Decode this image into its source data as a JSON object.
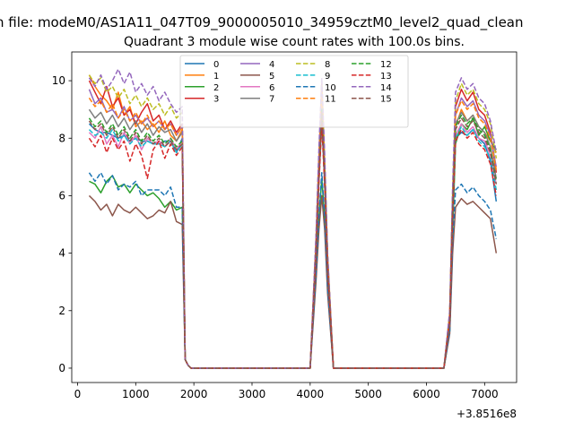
{
  "chart_data": {
    "type": "line",
    "suptitle": "n file: modeM0/AS1A11_047T09_9000005010_34959cztM0_level2_quad_clean",
    "title": "Quadrant 3 module wise count rates with 100.0s bins.",
    "xlabel": "",
    "ylabel": "",
    "x_offset_label": "+3.8516e8",
    "xlim": [
      -100,
      7550
    ],
    "ylim": [
      -0.5,
      11.0
    ],
    "xticks": [
      0,
      1000,
      2000,
      3000,
      4000,
      5000,
      6000,
      7000
    ],
    "yticks": [
      0,
      2,
      4,
      6,
      8,
      10
    ],
    "grid": false,
    "legend": {
      "placement": "top-center",
      "columns": 4
    },
    "x": [
      200,
      300,
      400,
      500,
      600,
      700,
      800,
      900,
      1000,
      1100,
      1200,
      1300,
      1400,
      1500,
      1600,
      1700,
      1800,
      1850,
      1900,
      1950,
      2000,
      2100,
      2500,
      3000,
      3500,
      3900,
      4000,
      4100,
      4150,
      4200,
      4250,
      4300,
      4400,
      4500,
      5000,
      5500,
      6000,
      6300,
      6400,
      6450,
      6500,
      6600,
      6700,
      6800,
      6900,
      7000,
      7100,
      7200
    ],
    "series": [
      {
        "name": "0",
        "color": "#1f77b4",
        "dash": "solid",
        "values": [
          8.5,
          8.3,
          8.2,
          8.2,
          8.1,
          8.0,
          8.1,
          7.9,
          8.0,
          7.9,
          7.9,
          7.8,
          7.8,
          7.9,
          7.9,
          7.5,
          8.0,
          0.3,
          0.1,
          0.0,
          0.0,
          0.0,
          0.0,
          0.0,
          0.0,
          0.0,
          0.0,
          4.0,
          6.6,
          8.8,
          6.5,
          3.5,
          0.0,
          0.0,
          0.0,
          0.0,
          0.0,
          0.0,
          1.7,
          5.5,
          8.0,
          8.2,
          8.1,
          8.3,
          8.0,
          7.8,
          7.2,
          5.8
        ]
      },
      {
        "name": "1",
        "color": "#ff7f0e",
        "dash": "solid",
        "values": [
          10.2,
          9.8,
          9.5,
          9.3,
          9.0,
          9.6,
          8.8,
          9.1,
          8.4,
          8.6,
          8.3,
          8.5,
          8.2,
          8.6,
          8.1,
          7.9,
          8.3,
          0.3,
          0.1,
          0.0,
          0.0,
          0.0,
          0.0,
          0.0,
          0.0,
          0.0,
          0.0,
          4.3,
          7.2,
          9.8,
          7.0,
          3.8,
          0.0,
          0.0,
          0.0,
          0.0,
          0.0,
          0.0,
          1.8,
          5.8,
          8.4,
          9.0,
          8.6,
          8.8,
          8.4,
          8.2,
          7.9,
          7.5
        ]
      },
      {
        "name": "2",
        "color": "#2ca02c",
        "dash": "solid",
        "values": [
          6.5,
          6.4,
          6.1,
          6.5,
          6.7,
          6.3,
          6.4,
          6.1,
          6.4,
          6.2,
          6.0,
          6.1,
          5.9,
          5.6,
          5.8,
          5.5,
          5.6,
          0.3,
          0.1,
          0.0,
          0.0,
          0.0,
          0.0,
          0.0,
          0.0,
          0.0,
          0.0,
          3.4,
          5.2,
          6.6,
          5.2,
          2.8,
          0.0,
          0.0,
          0.0,
          0.0,
          0.0,
          0.0,
          1.3,
          4.7,
          7.8,
          8.5,
          8.3,
          8.7,
          8.1,
          8.4,
          7.9,
          7.6
        ]
      },
      {
        "name": "3",
        "color": "#d62728",
        "dash": "solid",
        "values": [
          10.0,
          9.6,
          9.2,
          9.8,
          9.1,
          9.4,
          8.8,
          9.0,
          8.5,
          8.9,
          9.2,
          8.6,
          8.8,
          8.3,
          8.6,
          8.2,
          8.5,
          0.3,
          0.1,
          0.0,
          0.0,
          0.0,
          0.0,
          0.0,
          0.0,
          0.0,
          0.0,
          4.4,
          7.3,
          9.9,
          7.1,
          3.9,
          0.0,
          0.0,
          0.0,
          0.0,
          0.0,
          0.0,
          1.9,
          6.0,
          9.1,
          9.7,
          9.3,
          9.6,
          9.0,
          8.8,
          8.2,
          6.8
        ]
      },
      {
        "name": "4",
        "color": "#9467bd",
        "dash": "solid",
        "values": [
          9.7,
          9.2,
          9.4,
          8.9,
          9.0,
          8.7,
          9.1,
          8.6,
          8.8,
          8.5,
          8.7,
          8.4,
          8.6,
          8.3,
          8.5,
          8.1,
          8.4,
          0.3,
          0.1,
          0.0,
          0.0,
          0.0,
          0.0,
          0.0,
          0.0,
          0.0,
          0.0,
          4.3,
          7.1,
          9.7,
          7.0,
          3.8,
          0.0,
          0.0,
          0.0,
          0.0,
          0.0,
          0.0,
          1.8,
          5.9,
          8.8,
          9.4,
          9.1,
          9.3,
          8.8,
          8.6,
          8.1,
          7.0
        ]
      },
      {
        "name": "5",
        "color": "#8c564b",
        "dash": "solid",
        "values": [
          6.0,
          5.8,
          5.5,
          5.7,
          5.3,
          5.7,
          5.5,
          5.4,
          5.6,
          5.4,
          5.2,
          5.3,
          5.5,
          5.4,
          5.8,
          5.1,
          5.0,
          0.3,
          0.1,
          0.0,
          0.0,
          0.0,
          0.0,
          0.0,
          0.0,
          0.0,
          0.0,
          3.0,
          4.8,
          6.0,
          4.8,
          2.6,
          0.0,
          0.0,
          0.0,
          0.0,
          0.0,
          0.0,
          1.2,
          4.0,
          5.6,
          5.9,
          5.7,
          5.8,
          5.6,
          5.4,
          5.2,
          4.0
        ]
      },
      {
        "name": "6",
        "color": "#e377c2",
        "dash": "solid",
        "values": [
          8.2,
          8.0,
          8.4,
          7.8,
          8.1,
          7.7,
          8.2,
          7.8,
          8.1,
          7.6,
          8.0,
          7.8,
          7.9,
          7.7,
          8.0,
          7.6,
          7.9,
          0.3,
          0.1,
          0.0,
          0.0,
          0.0,
          0.0,
          0.0,
          0.0,
          0.0,
          0.0,
          3.9,
          6.5,
          8.7,
          6.4,
          3.5,
          0.0,
          0.0,
          0.0,
          0.0,
          0.0,
          0.0,
          1.6,
          5.4,
          8.1,
          8.5,
          8.2,
          8.4,
          8.0,
          7.9,
          7.4,
          6.4
        ]
      },
      {
        "name": "7",
        "color": "#7f7f7f",
        "dash": "solid",
        "values": [
          9.0,
          8.7,
          8.9,
          8.5,
          8.8,
          8.4,
          8.7,
          8.3,
          8.6,
          8.2,
          8.5,
          8.1,
          8.4,
          8.2,
          8.3,
          7.9,
          8.2,
          0.3,
          0.1,
          0.0,
          0.0,
          0.0,
          0.0,
          0.0,
          0.0,
          0.0,
          0.0,
          4.1,
          6.9,
          9.2,
          6.8,
          3.7,
          0.0,
          0.0,
          0.0,
          0.0,
          0.0,
          0.0,
          1.7,
          5.7,
          8.5,
          8.9,
          8.6,
          8.8,
          8.4,
          8.2,
          7.7,
          6.6
        ]
      },
      {
        "name": "8",
        "color": "#bcbd22",
        "dash": "dashed",
        "values": [
          10.2,
          9.9,
          10.1,
          9.6,
          9.8,
          9.4,
          9.7,
          9.2,
          9.5,
          9.1,
          9.4,
          9.0,
          9.2,
          8.8,
          9.1,
          8.7,
          8.9,
          0.3,
          0.1,
          0.0,
          0.0,
          0.0,
          0.0,
          0.0,
          0.0,
          0.0,
          0.0,
          4.5,
          7.4,
          10.0,
          7.2,
          3.9,
          0.0,
          0.0,
          0.0,
          0.0,
          0.0,
          0.0,
          1.9,
          6.1,
          9.3,
          9.9,
          9.5,
          9.7,
          9.2,
          9.0,
          8.5,
          7.3
        ]
      },
      {
        "name": "9",
        "color": "#17becf",
        "dash": "dashed",
        "values": [
          8.3,
          8.1,
          8.2,
          8.0,
          8.3,
          7.9,
          8.1,
          7.8,
          8.0,
          7.7,
          7.9,
          7.8,
          7.8,
          7.7,
          7.9,
          7.5,
          7.8,
          0.3,
          0.1,
          0.0,
          0.0,
          0.0,
          0.0,
          0.0,
          0.0,
          0.0,
          0.0,
          3.9,
          6.5,
          8.6,
          6.4,
          3.5,
          0.0,
          0.0,
          0.0,
          0.0,
          0.0,
          0.0,
          1.6,
          5.3,
          8.0,
          8.4,
          8.1,
          8.3,
          7.9,
          7.7,
          7.3,
          6.2
        ]
      },
      {
        "name": "10",
        "color": "#1f77b4",
        "dash": "dashed",
        "values": [
          6.8,
          6.5,
          6.8,
          6.4,
          6.7,
          6.2,
          6.4,
          6.3,
          6.5,
          6.0,
          6.2,
          6.2,
          6.2,
          6.0,
          6.3,
          5.6,
          5.6,
          0.3,
          0.1,
          0.0,
          0.0,
          0.0,
          0.0,
          0.0,
          0.0,
          0.0,
          0.0,
          3.3,
          5.3,
          6.8,
          5.2,
          2.8,
          0.0,
          0.0,
          0.0,
          0.0,
          0.0,
          0.0,
          1.3,
          4.4,
          6.2,
          6.4,
          6.1,
          6.3,
          6.0,
          5.8,
          5.5,
          4.5
        ]
      },
      {
        "name": "11",
        "color": "#ff7f0e",
        "dash": "dashed",
        "values": [
          9.4,
          9.1,
          9.3,
          8.9,
          9.2,
          8.7,
          9.0,
          8.6,
          8.9,
          8.5,
          8.8,
          8.4,
          8.6,
          8.3,
          8.5,
          8.1,
          8.4,
          0.3,
          0.1,
          0.0,
          0.0,
          0.0,
          0.0,
          0.0,
          0.0,
          0.0,
          0.0,
          4.3,
          7.1,
          9.6,
          6.9,
          3.8,
          0.0,
          0.0,
          0.0,
          0.0,
          0.0,
          0.0,
          1.8,
          5.8,
          8.8,
          9.3,
          9.0,
          9.2,
          8.7,
          8.5,
          8.0,
          6.9
        ]
      },
      {
        "name": "12",
        "color": "#2ca02c",
        "dash": "dashed",
        "values": [
          8.7,
          8.4,
          8.6,
          8.2,
          8.5,
          8.1,
          8.4,
          8.0,
          8.3,
          7.9,
          8.2,
          7.9,
          8.1,
          7.8,
          8.0,
          7.7,
          7.9,
          0.3,
          0.1,
          0.0,
          0.0,
          0.0,
          0.0,
          0.0,
          0.0,
          0.0,
          0.0,
          4.0,
          6.7,
          9.0,
          6.6,
          3.6,
          0.0,
          0.0,
          0.0,
          0.0,
          0.0,
          0.0,
          1.7,
          5.6,
          8.4,
          8.8,
          8.5,
          8.7,
          8.3,
          8.1,
          7.6,
          6.5
        ]
      },
      {
        "name": "13",
        "color": "#d62728",
        "dash": "dashed",
        "values": [
          8.0,
          7.7,
          8.1,
          7.5,
          8.0,
          7.6,
          7.9,
          7.2,
          7.8,
          7.4,
          6.6,
          7.6,
          7.9,
          7.3,
          7.8,
          7.4,
          7.7,
          0.3,
          0.1,
          0.0,
          0.0,
          0.0,
          0.0,
          0.0,
          0.0,
          0.0,
          0.0,
          3.9,
          6.4,
          8.5,
          6.3,
          3.4,
          0.0,
          0.0,
          0.0,
          0.0,
          0.0,
          0.0,
          1.6,
          5.2,
          7.9,
          8.3,
          8.0,
          8.2,
          7.8,
          7.6,
          7.1,
          6.0
        ]
      },
      {
        "name": "14",
        "color": "#9467bd",
        "dash": "dashed",
        "values": [
          10.1,
          9.8,
          10.2,
          9.7,
          10.0,
          10.4,
          9.9,
          10.3,
          9.6,
          9.9,
          9.5,
          9.8,
          9.3,
          9.6,
          9.2,
          8.9,
          9.1,
          0.3,
          0.1,
          0.0,
          0.0,
          0.0,
          0.0,
          0.0,
          0.0,
          0.0,
          0.0,
          4.6,
          7.6,
          10.1,
          7.4,
          4.0,
          0.0,
          0.0,
          0.0,
          0.0,
          0.0,
          0.0,
          2.0,
          6.3,
          9.6,
          10.1,
          9.7,
          9.9,
          9.4,
          9.2,
          8.6,
          7.5
        ]
      },
      {
        "name": "15",
        "color": "#8c564b",
        "dash": "dashed",
        "values": [
          8.6,
          8.3,
          8.5,
          8.1,
          8.4,
          8.0,
          8.3,
          7.9,
          8.2,
          7.8,
          8.1,
          7.8,
          8.0,
          7.7,
          7.9,
          7.6,
          7.8,
          0.3,
          0.1,
          0.0,
          0.0,
          0.0,
          0.0,
          0.0,
          0.0,
          0.0,
          0.0,
          4.0,
          6.6,
          8.9,
          6.5,
          3.5,
          0.0,
          0.0,
          0.0,
          0.0,
          0.0,
          0.0,
          1.6,
          5.5,
          8.3,
          8.7,
          8.4,
          8.6,
          8.2,
          8.0,
          7.5,
          6.4
        ]
      }
    ]
  }
}
